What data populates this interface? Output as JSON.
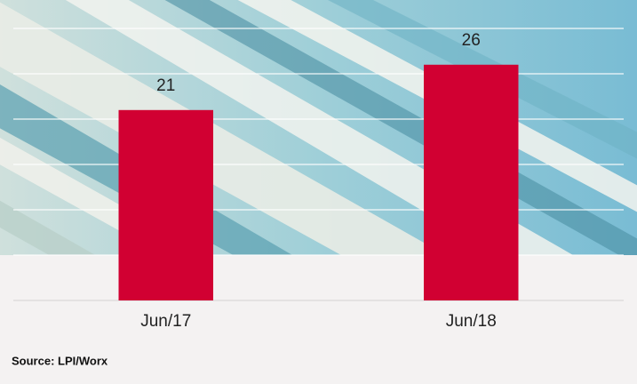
{
  "chart_data": {
    "type": "bar",
    "categories": [
      "Jun/17",
      "Jun/18"
    ],
    "values": [
      21,
      26
    ],
    "color": "#d10032",
    "ylim": [
      0,
      30
    ],
    "yticks": [
      0,
      5,
      10,
      15,
      20,
      25,
      30
    ],
    "grid": true,
    "source": "Source: LPI/Worx"
  }
}
